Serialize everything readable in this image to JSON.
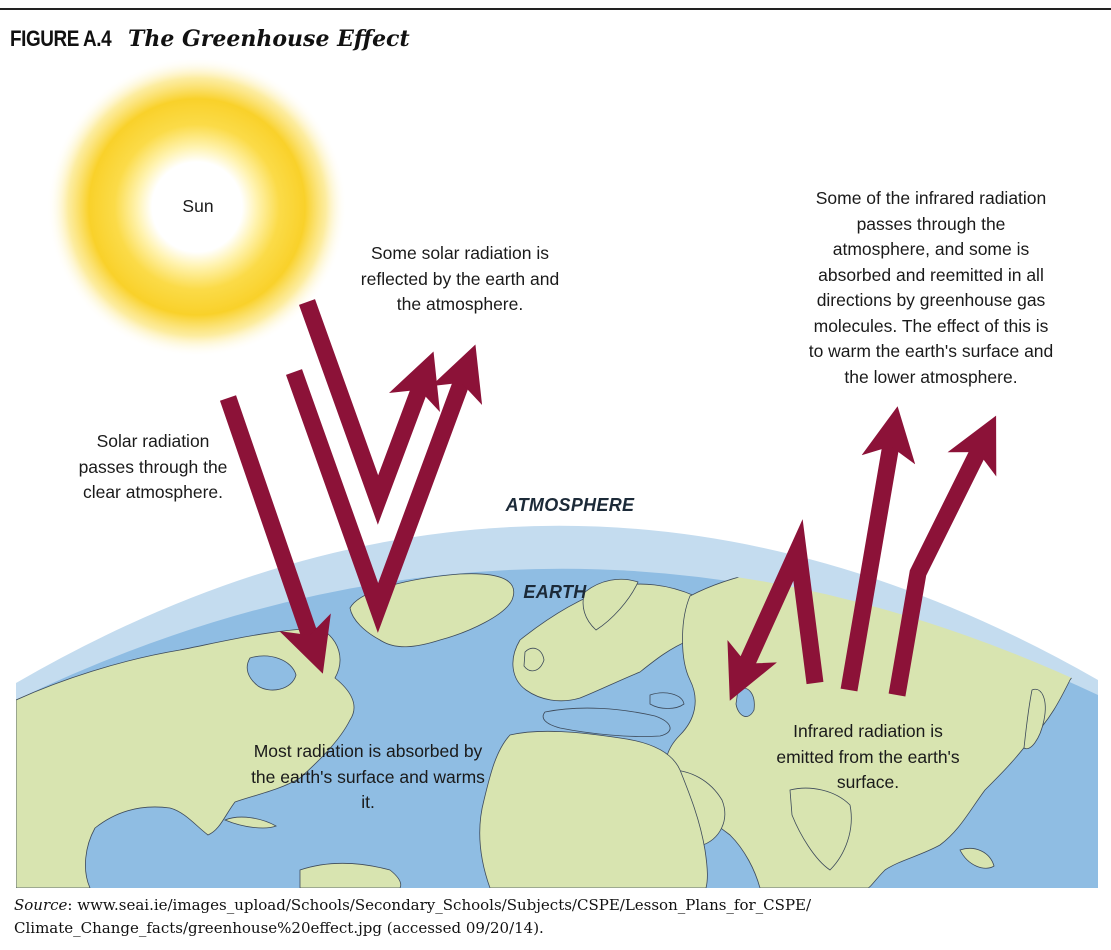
{
  "figure": {
    "label": "FIGURE A.4",
    "title": "The Greenhouse Effect"
  },
  "labels": {
    "sun": "Sun",
    "atmosphere": "ATMOSPHERE",
    "earth": "EARTH",
    "solar_in": "Solar radiation passes through the clear atmosphere.",
    "reflected": "Some solar radiation is reflected by the earth and the atmosphere.",
    "absorbed": "Most radiation is absorbed by the earth's surface and warms it.",
    "infrared_out": "Some of the infrared radiation passes through the atmosphere, and some is absorbed and reemitted in all directions by greenhouse gas molecules. The effect of this is to warm the earth's surface and the lower atmosphere.",
    "infrared_emitted": "Infrared radiation is emitted from the earth's surface."
  },
  "source": {
    "prefix": "Source",
    "text": ": www.seai.ie/images_upload/Schools/Secondary_Schools/Subjects/CSPE/Lesson_Plans_for_CSPE/ Climate_Change_facts/greenhouse%20effect.jpg (accessed 09/20/14)."
  },
  "colors": {
    "arrow": "#8c1238",
    "ocean": "#8fbde3",
    "land": "#d8e4b0",
    "atmosphere": "#c4dcef",
    "sun_core": "#ffffff",
    "sun_glow": "#f9d12a"
  }
}
